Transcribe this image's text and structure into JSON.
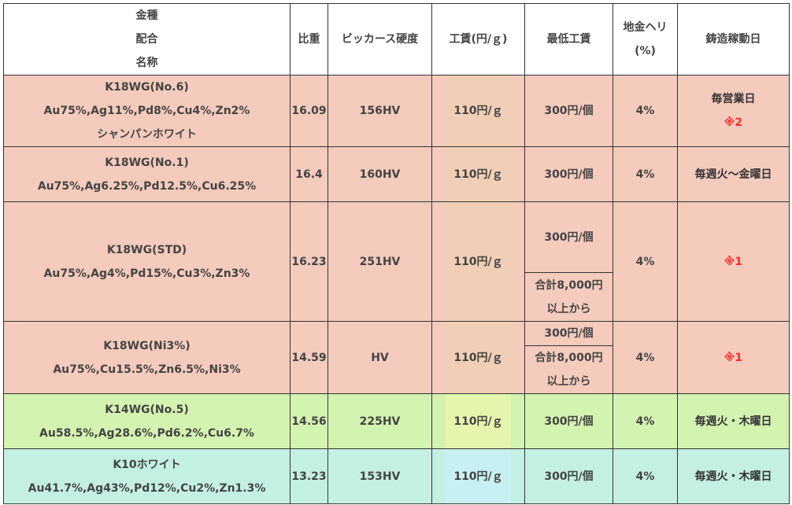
{
  "headers": {
    "name_lines": [
      "金種",
      "配合",
      "名称"
    ],
    "gravity": "比重",
    "hardness": "ビッカース硬度",
    "fee": "工賃(円/ｇ)",
    "min_fee": "最低工賃",
    "loss_lines": [
      "地金ヘリ",
      "(%)"
    ],
    "casting_days": "鋳造稼動日"
  },
  "rows": [
    {
      "name": "K18WG(No.6)",
      "composition": "Au75%,Ag11%,Pd8%,Cu4%,Zn2%",
      "subtitle": "シャンパンホワイト",
      "gravity": "16.09",
      "hardness": "156HV",
      "fee": "110円/ｇ",
      "min_fee": "300円/個",
      "loss": "4%",
      "days": "毎営業日",
      "note": "※2"
    },
    {
      "name": "K18WG(No.1)",
      "composition": "Au75%,Ag6.25%,Pd12.5%,Cu6.25%",
      "gravity": "16.4",
      "hardness": "160HV",
      "fee": "110円/ｇ",
      "min_fee": "300円/個",
      "loss": "4%",
      "days": "毎週火～金曜日"
    },
    {
      "name": "K18WG(STD)",
      "composition": "Au75%,Ag4%,Pd15%,Cu3%,Zn3%",
      "gravity": "16.23",
      "hardness": "251HV",
      "fee": "110円/ｇ",
      "min_fee": "300円/個",
      "min_fee_alt_lines": [
        "合計8,000円",
        "以上から"
      ],
      "loss": "4%",
      "note": "※1"
    },
    {
      "name": "K18WG(Ni3%)",
      "composition": "Au75%,Cu15.5%,Zn6.5%,Ni3%",
      "gravity": "14.59",
      "hardness": "HV",
      "fee": "110円/ｇ",
      "min_fee": "300円/個",
      "min_fee_alt_lines": [
        "合計8,000円",
        "以上から"
      ],
      "loss": "4%",
      "note": "※1"
    },
    {
      "name": "K14WG(No.5)",
      "composition": "Au58.5%,Ag28.6%,Pd6.2%,Cu6.7%",
      "gravity": "14.56",
      "hardness": "225HV",
      "fee": "110円/ｇ",
      "min_fee": "300円/個",
      "loss": "4%",
      "days": "毎週火・木曜日"
    },
    {
      "name": "K10ホワイト",
      "composition": "Au41.7%,Ag43%,Pd12%,Cu2%,Zn1.3%",
      "gravity": "13.23",
      "hardness": "153HV",
      "fee": "110円/ｇ",
      "min_fee": "300円/個",
      "loss": "4%",
      "days": "毎週火・木曜日"
    }
  ],
  "colors": {
    "pink_row": "#f4cbbd",
    "green_row": "#d4f3b1",
    "mint_row": "#c3f0e2",
    "note_red": "#ff2a2a",
    "border": "#333333"
  }
}
